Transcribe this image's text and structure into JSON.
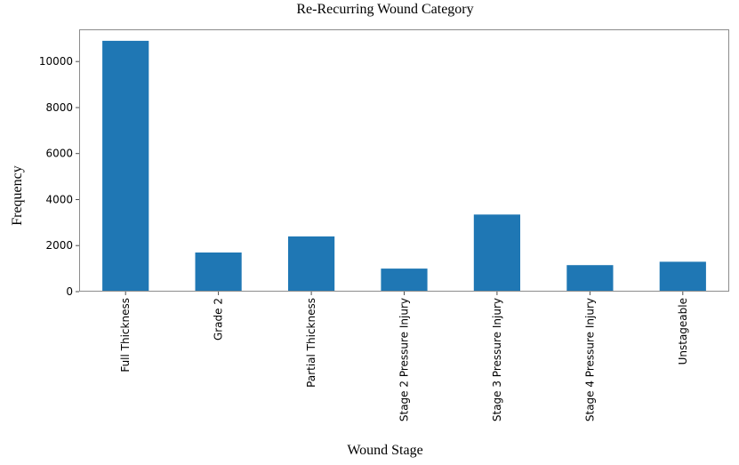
{
  "chart_data": {
    "type": "bar",
    "title": "Re-Recurring Wound Category",
    "xlabel": "Wound Stage",
    "ylabel": "Frequency",
    "categories": [
      "Full Thickness",
      "Grade 2",
      "Partial Thickness",
      "Stage 2 Pressure Injury",
      "Stage 3 Pressure Injury",
      "Stage 4 Pressure Injury",
      "Unstageable"
    ],
    "values": [
      10900,
      1700,
      2400,
      1000,
      3350,
      1150,
      1300
    ],
    "yticks": [
      0,
      2000,
      4000,
      6000,
      8000,
      10000
    ],
    "ylim": [
      0,
      11400
    ],
    "bar_color": "#1f77b4",
    "spine_color": "#8c8c8c",
    "tick_color": "#4d4d4d",
    "bar_width_fraction": 0.5,
    "grid": false,
    "legend": false,
    "x_tick_rotation_deg": 90
  }
}
